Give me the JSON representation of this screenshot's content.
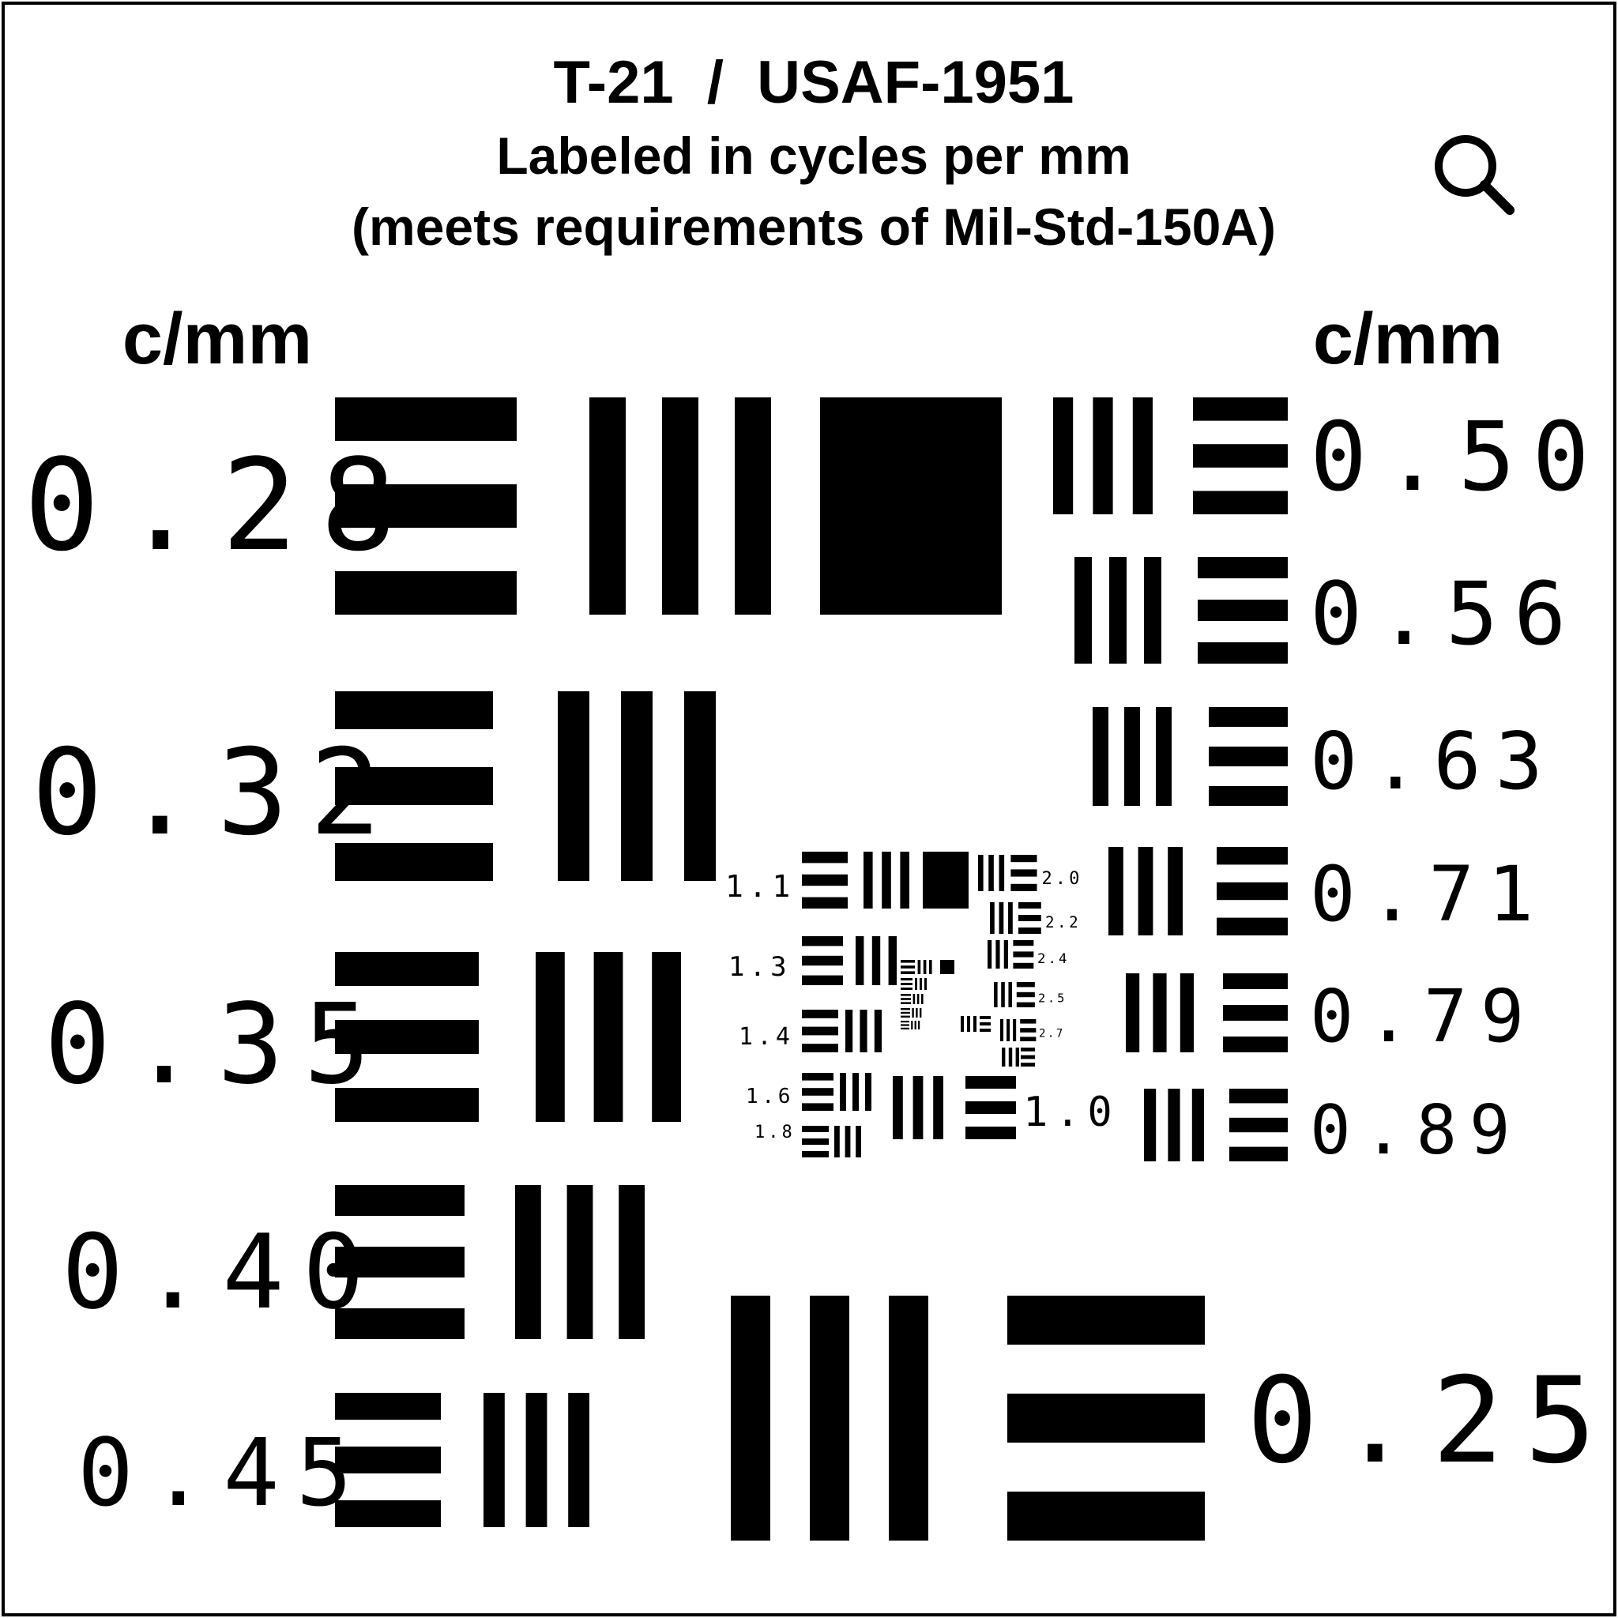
{
  "header": {
    "title": "T-21  /  USAF-1951",
    "subtitle": "Labeled in cycles per mm",
    "note": "(meets requirements of Mil-Std-150A)"
  },
  "unit_label": "c/mm",
  "zoom_icon": "magnifier-icon",
  "colors": {
    "ink": "#000000",
    "paper": "#ffffff"
  },
  "large_labels": {
    "left": [
      "0.28",
      "0.32",
      "0.35",
      "0.40",
      "0.45"
    ],
    "right": [
      "0.50",
      "0.56",
      "0.63",
      "0.71",
      "0.79",
      "0.89"
    ],
    "bottom": "0.25"
  },
  "small_labels": {
    "left": [
      "1.1",
      "1.3",
      "1.4",
      "1.6",
      "1.8"
    ],
    "right": [
      "2.0",
      "2.2",
      "2.4",
      "2.5",
      "2.7"
    ],
    "bottom": "1.0"
  }
}
